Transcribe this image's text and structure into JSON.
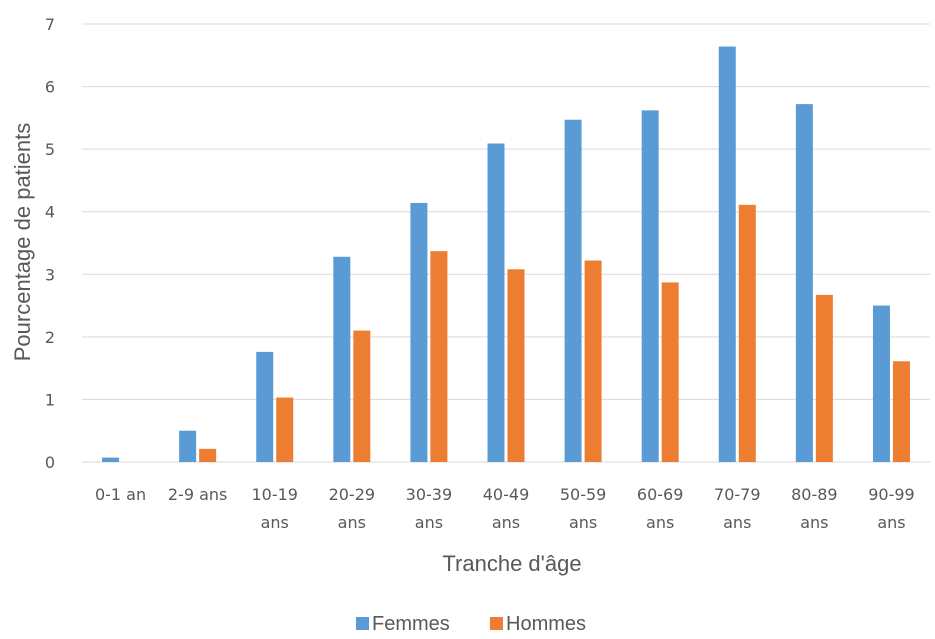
{
  "chart_data": {
    "type": "bar",
    "title": "",
    "xlabel": "Tranche d'âge",
    "ylabel": "Pourcentage de patients",
    "ylim": [
      0,
      7
    ],
    "yticks": [
      0,
      1,
      2,
      3,
      4,
      5,
      6,
      7
    ],
    "grid": true,
    "legend_position": "bottom",
    "categories": [
      [
        "0-1 an"
      ],
      [
        "2-9 ans"
      ],
      [
        "10-19",
        "ans"
      ],
      [
        "20-29",
        "ans"
      ],
      [
        "30-39",
        "ans"
      ],
      [
        "40-49",
        "ans"
      ],
      [
        "50-59",
        "ans"
      ],
      [
        "60-69",
        "ans"
      ],
      [
        "70-79",
        "ans"
      ],
      [
        "80-89",
        "ans"
      ],
      [
        "90-99",
        "ans"
      ]
    ],
    "series": [
      {
        "name": "Femmes",
        "color": "#5B9BD5",
        "values": [
          0.07,
          0.5,
          1.76,
          3.28,
          4.14,
          5.09,
          5.47,
          5.62,
          6.64,
          5.72,
          2.5
        ]
      },
      {
        "name": "Hommes",
        "color": "#ED7D31",
        "values": [
          0,
          0.21,
          1.03,
          2.1,
          3.37,
          3.08,
          3.22,
          2.87,
          4.11,
          2.67,
          1.61
        ]
      }
    ]
  }
}
